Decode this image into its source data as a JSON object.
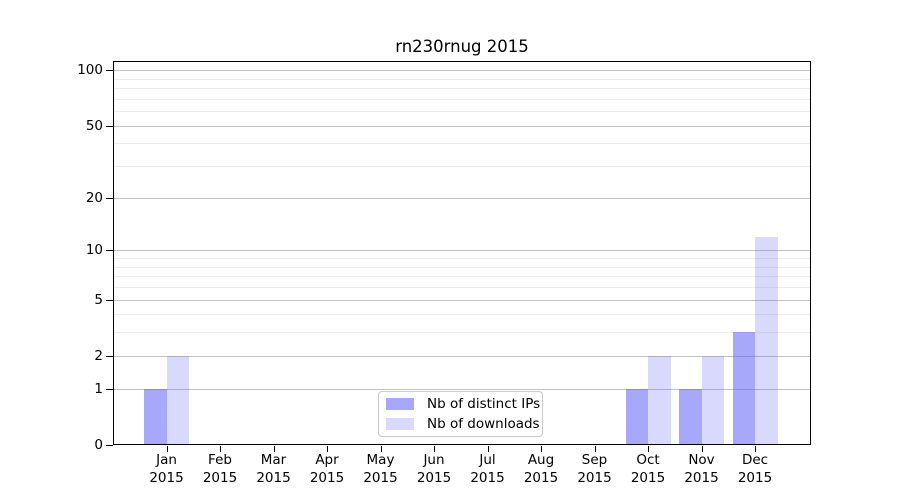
{
  "figure": {
    "title": "rn230rnug 2015",
    "background": "#ffffff"
  },
  "colors": {
    "bar_distinct_ips": "rgba(90,90,245,0.53)",
    "bar_downloads": "rgba(90,90,245,0.23)",
    "grid_major": "#c2c2c2",
    "grid_minor": "#ececec",
    "axis_spine": "#000000",
    "text": "#000000",
    "legend_border": "#cccccc"
  },
  "chart_data": {
    "type": "bar",
    "title": "rn230rnug 2015",
    "categories": [
      "Jan",
      "Feb",
      "Mar",
      "Apr",
      "May",
      "Jun",
      "Jul",
      "Aug",
      "Sep",
      "Oct",
      "Nov",
      "Dec"
    ],
    "category_year": "2015",
    "series": [
      {
        "name": "Nb of distinct IPs",
        "values": [
          1,
          0,
          0,
          0,
          0,
          0,
          0,
          0,
          0,
          1,
          1,
          3
        ]
      },
      {
        "name": "Nb of downloads",
        "values": [
          2,
          0,
          0,
          0,
          0,
          0,
          0,
          0,
          0,
          2,
          2,
          12
        ]
      }
    ],
    "xlabel": "",
    "ylabel": "",
    "yscale": "log1p",
    "ylim": [
      0,
      112
    ],
    "grid": "on",
    "y_ticks": [
      {
        "value": 100,
        "label": "100"
      },
      {
        "value": 50,
        "label": "50"
      },
      {
        "value": 20,
        "label": "20"
      },
      {
        "value": 10,
        "label": "10"
      },
      {
        "value": 5,
        "label": "5"
      },
      {
        "value": 2,
        "label": "2"
      },
      {
        "value": 1,
        "label": "1"
      },
      {
        "value": 0,
        "label": "0"
      }
    ],
    "gridlines": {
      "major": [
        1,
        2,
        5,
        10,
        20,
        50,
        100
      ],
      "minor": [
        3,
        4,
        6,
        7,
        8,
        9,
        30,
        40,
        60,
        70,
        80,
        90
      ]
    },
    "legend": {
      "position": "lower-center-inside",
      "entries": [
        "Nb of distinct IPs",
        "Nb of downloads"
      ]
    }
  }
}
